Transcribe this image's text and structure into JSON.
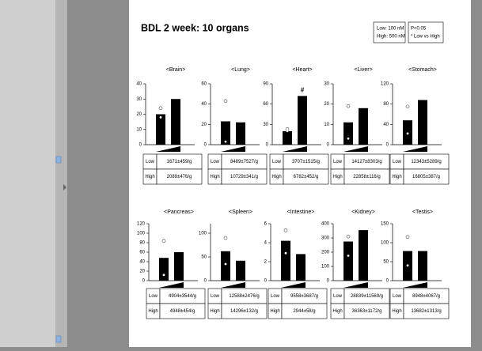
{
  "title": "BDL 2 week: 10 organs",
  "legend_box": {
    "dose": [
      "Low: 100 nM",
      "High: 500 nM"
    ],
    "stat": [
      "P<0.05",
      "* Low vs High"
    ]
  },
  "chart_data": [
    {
      "type": "bar",
      "title": "<Brain>",
      "categories": [
        null,
        null
      ],
      "values": [
        20,
        30
      ],
      "open_points": [
        24,
        null
      ],
      "inner_points": [
        18,
        null
      ],
      "ylim": [
        0,
        40
      ],
      "yticks": [
        0,
        10,
        20,
        30,
        40
      ],
      "color": "#000000",
      "table": [
        [
          "Low",
          "1671±459/g"
        ],
        [
          "High",
          "2089±476/g"
        ]
      ]
    },
    {
      "type": "bar",
      "title": "<Lung>",
      "categories": [
        null,
        null
      ],
      "values": [
        23,
        22
      ],
      "open_points": [
        43,
        null
      ],
      "inner_points": [
        3,
        null
      ],
      "ylim": [
        0,
        60
      ],
      "yticks": [
        0,
        20,
        40,
        60
      ],
      "color": "#000000",
      "table": [
        [
          "Low",
          "8489±7527/g"
        ],
        [
          "High",
          "10729±341/g"
        ]
      ]
    },
    {
      "type": "bar",
      "title": "<Heart>",
      "categories": [
        null,
        null
      ],
      "values": [
        20,
        72
      ],
      "open_points": [
        23,
        null
      ],
      "inner_points": [
        20,
        null
      ],
      "ylim": [
        0,
        90
      ],
      "yticks": [
        0,
        30,
        60,
        90
      ],
      "color": "#000000",
      "annotations": [
        {
          "text": "#",
          "category_index": 1
        }
      ],
      "table": [
        [
          "Low",
          "3707±1515/g"
        ],
        [
          "High",
          "6782±452/g"
        ]
      ]
    },
    {
      "type": "bar",
      "title": "<Liver>",
      "categories": [
        null,
        null
      ],
      "values": [
        11,
        18
      ],
      "open_points": [
        19,
        null
      ],
      "inner_points": [
        3,
        null
      ],
      "ylim": [
        0,
        30
      ],
      "yticks": [
        0,
        10,
        20,
        30
      ],
      "color": "#000000",
      "table": [
        [
          "Low",
          "14127±8303/g"
        ],
        [
          "High",
          "22858±116/g"
        ]
      ]
    },
    {
      "type": "bar",
      "title": "<Stomach>",
      "categories": [
        null,
        null
      ],
      "values": [
        48,
        88
      ],
      "open_points": [
        75,
        null
      ],
      "inner_points": [
        22,
        null
      ],
      "ylim": [
        0,
        120
      ],
      "yticks": [
        0,
        40,
        80,
        120
      ],
      "color": "#000000",
      "table": [
        [
          "Low",
          "12343±5289/g"
        ],
        [
          "High",
          "16805±387/g"
        ]
      ]
    },
    {
      "type": "bar",
      "title": "<Pancreas>",
      "categories": [
        null,
        null
      ],
      "values": [
        48,
        60
      ],
      "open_points": [
        84,
        null
      ],
      "inner_points": [
        12,
        null
      ],
      "ylim": [
        0,
        120
      ],
      "yticks": [
        0,
        20,
        40,
        60,
        80,
        100,
        120
      ],
      "color": "#000000",
      "table": [
        [
          "Low",
          "4904±3544/g"
        ],
        [
          "High",
          "4948±454/g"
        ]
      ]
    },
    {
      "type": "bar",
      "title": "<Spleen>",
      "categories": [
        null,
        null
      ],
      "values": [
        62,
        42
      ],
      "open_points": [
        90,
        null
      ],
      "inner_points": [
        35,
        null
      ],
      "ylim": [
        0,
        120
      ],
      "yticks": [
        0,
        50,
        100
      ],
      "color": "#000000",
      "table": [
        [
          "Low",
          "12588±2476/g"
        ],
        [
          "High",
          "14296±132/g"
        ]
      ]
    },
    {
      "type": "bar",
      "title": "<Intestine>",
      "categories": [
        null,
        null
      ],
      "values": [
        4.2,
        2.8
      ],
      "open_points": [
        5.3,
        null
      ],
      "inner_points": [
        2.9,
        null
      ],
      "ylim": [
        0,
        6
      ],
      "yticks": [
        0,
        2,
        4,
        6
      ],
      "color": "#000000",
      "table": [
        [
          "Low",
          "9558±3687/g"
        ],
        [
          "High",
          "2944±58/g"
        ]
      ]
    },
    {
      "type": "bar",
      "title": "<Kidney>",
      "categories": [
        null,
        null
      ],
      "values": [
        275,
        355
      ],
      "open_points": [
        310,
        null
      ],
      "inner_points": [
        175,
        null
      ],
      "ylim": [
        0,
        400
      ],
      "yticks": [
        0,
        100,
        200,
        300,
        400
      ],
      "color": "#000000",
      "table": [
        [
          "Low",
          "28839±11569/g"
        ],
        [
          "High",
          "36363±1172/g"
        ]
      ]
    },
    {
      "type": "bar",
      "title": "<Testis>",
      "categories": [
        null,
        null
      ],
      "values": [
        78,
        78
      ],
      "open_points": [
        115,
        null
      ],
      "inner_points": [
        40,
        null
      ],
      "ylim": [
        0,
        150
      ],
      "yticks": [
        0,
        50,
        100,
        150
      ],
      "color": "#000000",
      "table": [
        [
          "Low",
          "8948±4067/g"
        ],
        [
          "High",
          "13682±1313/g"
        ]
      ]
    }
  ]
}
